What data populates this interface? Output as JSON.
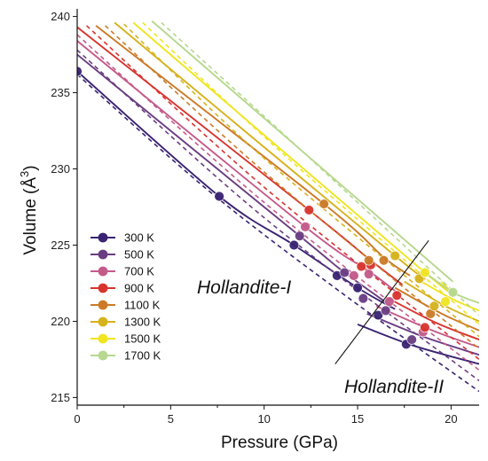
{
  "chart_data": {
    "type": "scatter",
    "title": "",
    "xlabel": "Pressure (GPa)",
    "ylabel_main": "Volume (Å",
    "ylabel_sup": "3",
    "ylabel_end": ")",
    "xlim": [
      0,
      21.5
    ],
    "ylim": [
      214.5,
      240.5
    ],
    "xticks": [
      0,
      5,
      10,
      15,
      20
    ],
    "yticks": [
      215,
      220,
      225,
      230,
      235,
      240
    ],
    "xtick_labels": [
      "0",
      "5",
      "10",
      "15",
      "20"
    ],
    "ytick_labels": [
      "215",
      "220",
      "225",
      "230",
      "235",
      "240"
    ],
    "grid": false,
    "legend_position": "lower-left",
    "annotations": {
      "phase_1": "Hollandite-I",
      "phase_2": "Hollandite-II",
      "boundary_line": [
        [
          13.8,
          217.2
        ],
        [
          18.8,
          225.3
        ]
      ]
    },
    "series": [
      {
        "name": "300 K",
        "color": "#3a2372",
        "points": [
          [
            0,
            236.4
          ],
          [
            7.6,
            228.2
          ],
          [
            11.6,
            225.0
          ],
          [
            13.9,
            223.0
          ],
          [
            15.0,
            222.2
          ],
          [
            16.1,
            220.4
          ],
          [
            17.6,
            218.5
          ]
        ],
        "fit_I": [
          [
            0,
            236.4
          ],
          [
            7.6,
            228.2
          ],
          [
            11.6,
            225.0
          ],
          [
            15.0,
            222.2
          ],
          [
            17.0,
            220.8
          ]
        ],
        "fit_II": [
          [
            15.0,
            219.8
          ],
          [
            18.0,
            218.4
          ],
          [
            21.5,
            217.2
          ]
        ],
        "dash": [
          [
            0,
            236.2
          ],
          [
            7,
            228.6
          ],
          [
            14,
            222.0
          ],
          [
            21.5,
            215.4
          ]
        ]
      },
      {
        "name": "500 K",
        "color": "#6a3d82",
        "points": [
          [
            11.9,
            225.6
          ],
          [
            14.3,
            223.2
          ],
          [
            15.3,
            221.5
          ],
          [
            16.5,
            220.7
          ],
          [
            17.9,
            218.8
          ]
        ],
        "fit_I": [
          [
            0,
            237.5
          ],
          [
            11.9,
            225.6
          ],
          [
            14.3,
            223.2
          ],
          [
            16.8,
            221.0
          ]
        ],
        "fit_II": [
          [
            15.5,
            220.5
          ],
          [
            18.5,
            219.0
          ],
          [
            21.5,
            217.8
          ]
        ],
        "dash": [
          [
            0,
            237.8
          ],
          [
            10,
            226.8
          ],
          [
            21.5,
            216.1
          ]
        ]
      },
      {
        "name": "700 K",
        "color": "#c45a8a",
        "points": [
          [
            12.2,
            226.2
          ],
          [
            14.8,
            223.0
          ],
          [
            15.6,
            223.1
          ],
          [
            16.7,
            221.3
          ],
          [
            18.5,
            219.3
          ]
        ],
        "fit_I": [
          [
            0,
            238.4
          ],
          [
            12.2,
            226.2
          ],
          [
            15.6,
            223.3
          ],
          [
            17.2,
            221.8
          ]
        ],
        "fit_II": [
          [
            16.0,
            221.0
          ],
          [
            19.0,
            219.4
          ],
          [
            21.5,
            218.3
          ]
        ],
        "dash": [
          [
            0,
            238.8
          ],
          [
            10,
            227.8
          ],
          [
            21.5,
            216.8
          ]
        ]
      },
      {
        "name": "900 K",
        "color": "#d8342e",
        "points": [
          [
            12.4,
            227.3
          ],
          [
            15.2,
            223.6
          ],
          [
            15.7,
            223.7
          ],
          [
            17.1,
            221.7
          ],
          [
            18.6,
            219.6
          ]
        ],
        "fit_I": [
          [
            0,
            239.3
          ],
          [
            12.4,
            227.3
          ],
          [
            15.7,
            224.0
          ],
          [
            17.4,
            222.4
          ]
        ],
        "fit_II": [
          [
            16.5,
            221.6
          ],
          [
            19.2,
            219.9
          ],
          [
            21.5,
            218.8
          ]
        ],
        "dash": [
          [
            0.5,
            239.4
          ],
          [
            10,
            228.8
          ],
          [
            21.5,
            217.5
          ]
        ]
      },
      {
        "name": "1100 K",
        "color": "#cc7a27",
        "points": [
          [
            13.2,
            227.7
          ],
          [
            15.6,
            224.0
          ],
          [
            16.4,
            224.0
          ],
          [
            18.9,
            220.5
          ]
        ],
        "fit_I": [
          [
            1,
            239.4
          ],
          [
            13.2,
            227.7
          ],
          [
            16.4,
            224.2
          ],
          [
            17.8,
            223.0
          ]
        ],
        "fit_II": [
          [
            17.0,
            222.2
          ],
          [
            19.5,
            220.5
          ],
          [
            21.5,
            219.4
          ]
        ],
        "dash": [
          [
            1.5,
            239.4
          ],
          [
            10,
            229.8
          ],
          [
            21.5,
            218.2
          ]
        ]
      },
      {
        "name": "1300 K",
        "color": "#d6b21c",
        "points": [
          [
            17.0,
            224.3
          ],
          [
            18.3,
            222.8
          ],
          [
            19.1,
            221.0
          ]
        ],
        "fit_I": [
          [
            2,
            239.6
          ],
          [
            17.0,
            224.3
          ],
          [
            18.3,
            223.2
          ]
        ],
        "fit_II": [
          [
            17.5,
            222.6
          ],
          [
            19.7,
            221.0
          ],
          [
            21.5,
            220.0
          ]
        ],
        "dash": [
          [
            2.5,
            239.5
          ],
          [
            10,
            230.7
          ],
          [
            21.5,
            219.0
          ]
        ]
      },
      {
        "name": "1500 K",
        "color": "#f0e520",
        "points": [
          [
            18.6,
            223.2
          ],
          [
            19.7,
            221.3
          ]
        ],
        "fit_I": [
          [
            3,
            239.6
          ],
          [
            18.6,
            223.2
          ],
          [
            19.5,
            222.6
          ]
        ],
        "fit_II": [
          [
            18.0,
            222.9
          ],
          [
            20.0,
            221.5
          ],
          [
            21.5,
            220.7
          ]
        ],
        "dash": [
          [
            3.5,
            239.6
          ],
          [
            11,
            231.0
          ],
          [
            21.5,
            219.8
          ]
        ]
      },
      {
        "name": "1700 K",
        "color": "#b7d88f",
        "points": [
          [
            20.1,
            221.9
          ]
        ],
        "fit_I": [
          [
            4,
            239.7
          ],
          [
            20.1,
            222.6
          ]
        ],
        "fit_II": [
          [
            18.5,
            223.3
          ],
          [
            20.1,
            221.9
          ],
          [
            21.5,
            221.2
          ]
        ],
        "dash": [
          [
            4.5,
            239.6
          ],
          [
            12,
            231.2
          ],
          [
            21.5,
            220.4
          ]
        ]
      }
    ]
  }
}
